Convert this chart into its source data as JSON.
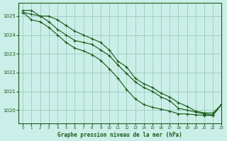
{
  "title": "Graphe pression niveau de la mer (hPa)",
  "xlim": [
    -0.5,
    23
  ],
  "ylim": [
    1019.3,
    1025.7
  ],
  "yticks": [
    1020,
    1021,
    1022,
    1023,
    1024,
    1025
  ],
  "xticks": [
    0,
    1,
    2,
    3,
    4,
    5,
    6,
    7,
    8,
    9,
    10,
    11,
    12,
    13,
    14,
    15,
    16,
    17,
    18,
    19,
    20,
    21,
    22,
    23
  ],
  "bg_color": "#cceee8",
  "grid_color": "#99ccbb",
  "line_color": "#1a5c1a",
  "figsize": [
    3.2,
    2.0
  ],
  "dpi": 100,
  "series": [
    [
      1025.3,
      1025.3,
      1025.0,
      1025.0,
      1024.8,
      1024.5,
      1024.2,
      1024.0,
      1023.8,
      1023.6,
      1023.2,
      1022.6,
      1022.3,
      1021.7,
      1021.4,
      1021.2,
      1020.9,
      1020.7,
      1020.4,
      1020.2,
      1019.95,
      1019.85,
      1019.85,
      1020.3
    ],
    [
      1025.2,
      1025.1,
      1025.0,
      1024.7,
      1024.3,
      1024.0,
      1023.7,
      1023.6,
      1023.5,
      1023.2,
      1022.9,
      1022.4,
      1021.95,
      1021.5,
      1021.2,
      1021.0,
      1020.7,
      1020.5,
      1020.1,
      1020.0,
      1019.9,
      1019.8,
      1019.75,
      1020.3
    ],
    [
      1025.2,
      1024.8,
      1024.7,
      1024.4,
      1024.0,
      1023.6,
      1023.3,
      1023.15,
      1022.95,
      1022.65,
      1022.2,
      1021.7,
      1021.1,
      1020.6,
      1020.3,
      1020.15,
      1020.05,
      1019.95,
      1019.8,
      1019.8,
      1019.75,
      1019.72,
      1019.72,
      1020.3
    ]
  ]
}
